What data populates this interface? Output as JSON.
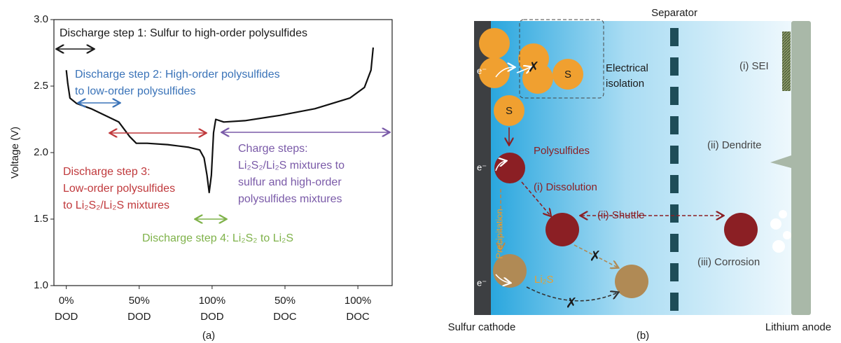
{
  "chart_data": {
    "type": "line",
    "ylabel": "Voltage (V)",
    "caption": "(a)",
    "x": [
      0,
      0.02,
      0.05,
      0.14,
      0.34,
      0.53,
      0.72,
      0.87,
      0.96,
      1.11,
      1.39,
      1.68,
      1.83,
      1.89,
      1.93,
      1.96,
      1.99,
      2.02,
      2.05,
      2.16,
      2.45,
      2.93,
      3.41,
      3.89,
      4.09,
      4.18,
      4.21
    ],
    "values": [
      2.62,
      2.52,
      2.41,
      2.37,
      2.33,
      2.28,
      2.23,
      2.12,
      2.07,
      2.07,
      2.06,
      2.04,
      2.02,
      1.96,
      1.83,
      1.7,
      1.83,
      2.15,
      2.25,
      2.23,
      2.24,
      2.28,
      2.33,
      2.41,
      2.49,
      2.62,
      2.79
    ],
    "color": "#111111",
    "xlim": [
      -0.17,
      4.47
    ],
    "ylim": [
      1.0,
      3.0
    ],
    "xticks": [
      {
        "value": 0,
        "label": "0%\nDOD"
      },
      {
        "value": 1,
        "label": "50%\nDOD"
      },
      {
        "value": 2,
        "label": "100%\nDOD"
      },
      {
        "value": 3,
        "label": "50%\nDOC"
      },
      {
        "value": 4,
        "label": "100%\nDOC"
      }
    ],
    "yticks": [
      {
        "value": 1.0,
        "label": "1.0"
      },
      {
        "value": 1.5,
        "label": "1.5"
      },
      {
        "value": 2.0,
        "label": "2.0"
      },
      {
        "value": 2.5,
        "label": "2.5"
      },
      {
        "value": 3.0,
        "label": "3.0"
      }
    ],
    "annotations": [
      {
        "lines": [
          "Discharge step 1: Sulfur to high-order polysulfides"
        ],
        "color": "#1a1a1a"
      },
      {
        "lines": [
          "Discharge step 2: High-order polysulfides",
          "to low-order polysulfides"
        ],
        "color": "#3a73b8"
      },
      {
        "lines": [
          "Discharge step 3:",
          "Low-order polysulfides",
          "to Li₂S₂/Li₂S mixtures"
        ],
        "color": "#c0393c"
      },
      {
        "lines": [
          "Charge steps:",
          "Li₂S₂/Li₂S mixtures to",
          "sulfur and high-order",
          "polysulfides mixtures"
        ],
        "color": "#7a5aa8"
      },
      {
        "lines": [
          "Discharge step 4: Li₂S₂ to Li₂S"
        ],
        "color": "#7fb24a"
      }
    ]
  },
  "diagram": {
    "caption": "(b)",
    "separator": "Separator",
    "cathode": "Sulfur cathode",
    "anode": "Lithium anode",
    "sulfur": [
      "S",
      "S"
    ],
    "isolation": [
      "Electrical",
      "isolation"
    ],
    "sei": "(i) SEI",
    "dendrite": "(ii) Dendrite",
    "polysulfides": "Polysulfides",
    "dissolution": "(i) Dissolution",
    "shuttle": "(ii) Shuttle",
    "precipitation": "Precipitation",
    "corrosion": "(iii) Corrosion",
    "li2s": "Li₂S",
    "electron": [
      "e⁻",
      "e⁻",
      "e⁻"
    ]
  }
}
